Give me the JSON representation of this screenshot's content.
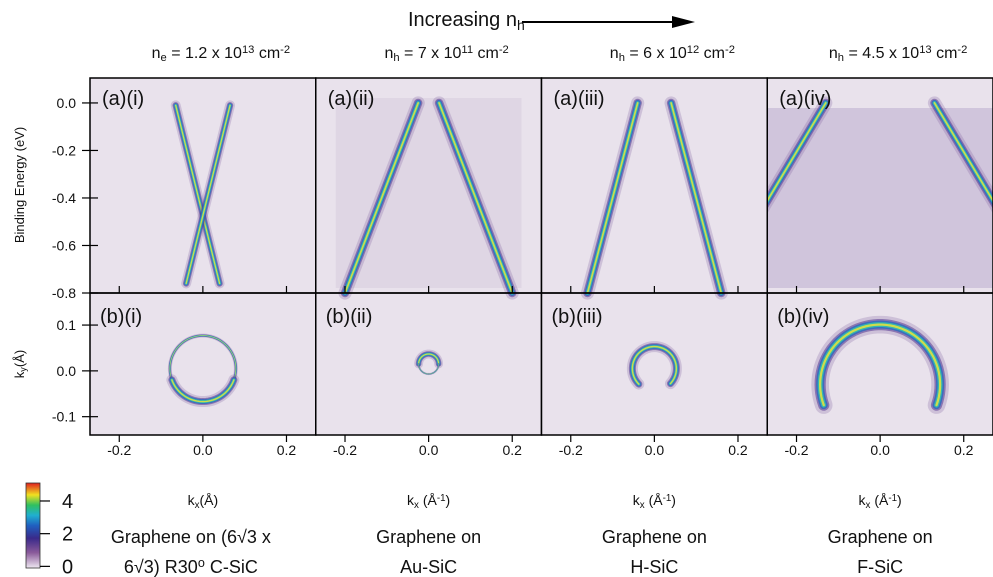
{
  "header": {
    "label": {
      "parts": [
        {
          "text": "Increasing n"
        },
        {
          "text": "h",
          "pos": "sub"
        }
      ]
    }
  },
  "axes": {
    "xlim": [
      -0.27,
      0.27
    ],
    "xticks": [
      -0.2,
      {
        "value": 0,
        "label": "0.0"
      },
      0.2
    ],
    "top": {
      "ylabel": {
        "parts": [
          {
            "text": "Binding Energy (eV)"
          }
        ]
      },
      "ylim": [
        -0.8,
        0.105
      ],
      "yticks": [
        {
          "value": 0,
          "label": "0.0"
        },
        -0.2,
        -0.4,
        -0.6,
        -0.8
      ]
    },
    "bottom": {
      "ylabel": {
        "parts": [
          {
            "text": "k"
          },
          {
            "text": "y",
            "pos": "sub"
          },
          {
            "text": "(Å)"
          }
        ]
      },
      "ylim": [
        -0.14,
        0.17
      ],
      "yticks": [
        0.1,
        {
          "value": 0,
          "label": "0.0"
        },
        -0.1
      ]
    }
  },
  "panels": [
    {
      "density": {
        "parts": [
          {
            "text": "n"
          },
          {
            "text": "e",
            "pos": "sub"
          },
          {
            "text": " = 1.2 x 10"
          },
          {
            "text": "13",
            "pos": "sup"
          },
          {
            "text": " cm"
          },
          {
            "text": "-2",
            "pos": "sup"
          }
        ]
      },
      "tag_top": "(a)(i)",
      "tag_bottom": "(b)(i)",
      "xlabel": {
        "parts": [
          {
            "text": "k"
          },
          {
            "text": "x",
            "pos": "sub"
          },
          {
            "text": "(Å)"
          }
        ]
      },
      "caption": [
        {
          "parts": [
            {
              "text": "Graphene on (6√3 x"
            }
          ]
        },
        {
          "parts": [
            {
              "text": "6√3) R30"
            },
            {
              "text": "o",
              "pos": "sup"
            },
            {
              "text": " C-SiC"
            }
          ]
        }
      ]
    },
    {
      "density": {
        "parts": [
          {
            "text": "n"
          },
          {
            "text": "h",
            "pos": "sub"
          },
          {
            "text": " = 7 x 10"
          },
          {
            "text": "11",
            "pos": "sup"
          },
          {
            "text": " cm"
          },
          {
            "text": "-2",
            "pos": "sup"
          }
        ]
      },
      "tag_top": "(a)(ii)",
      "tag_bottom": "(b)(ii)",
      "xlabel": {
        "parts": [
          {
            "text": "k"
          },
          {
            "text": "x",
            "pos": "sub"
          },
          {
            "text": " (Å"
          },
          {
            "text": "-1",
            "pos": "sup"
          },
          {
            "text": ")"
          }
        ]
      },
      "caption": [
        {
          "parts": [
            {
              "text": "Graphene on"
            }
          ]
        },
        {
          "parts": [
            {
              "text": "Au-SiC"
            }
          ]
        }
      ]
    },
    {
      "density": {
        "parts": [
          {
            "text": "n"
          },
          {
            "text": "h",
            "pos": "sub"
          },
          {
            "text": " = 6 x 10"
          },
          {
            "text": "12",
            "pos": "sup"
          },
          {
            "text": " cm"
          },
          {
            "text": "-2",
            "pos": "sup"
          }
        ]
      },
      "tag_top": "(a)(iii)",
      "tag_bottom": "(b)(iii)",
      "xlabel": {
        "parts": [
          {
            "text": "k"
          },
          {
            "text": "x",
            "pos": "sub"
          },
          {
            "text": " (Å"
          },
          {
            "text": "-1",
            "pos": "sup"
          },
          {
            "text": ")"
          }
        ]
      },
      "caption": [
        {
          "parts": [
            {
              "text": "Graphene on"
            }
          ]
        },
        {
          "parts": [
            {
              "text": "H-SiC"
            }
          ]
        }
      ]
    },
    {
      "density": {
        "parts": [
          {
            "text": "n"
          },
          {
            "text": "h",
            "pos": "sub"
          },
          {
            "text": " = 4.5 x 10"
          },
          {
            "text": "13",
            "pos": "sup"
          },
          {
            "text": " cm"
          },
          {
            "text": "-2",
            "pos": "sup"
          }
        ]
      },
      "tag_top": "(a)(iv)",
      "tag_bottom": "(b)(iv)",
      "xlabel": {
        "parts": [
          {
            "text": "k"
          },
          {
            "text": "x",
            "pos": "sub"
          },
          {
            "text": " (Å"
          },
          {
            "text": "-1",
            "pos": "sup"
          },
          {
            "text": ")"
          }
        ]
      },
      "caption": [
        {
          "parts": [
            {
              "text": "Graphene on"
            }
          ]
        },
        {
          "parts": [
            {
              "text": "F-SiC"
            }
          ]
        }
      ]
    }
  ],
  "colorbar": {
    "lim": [
      -0.1,
      5.1
    ],
    "ticks": [
      4,
      2,
      0
    ]
  }
}
